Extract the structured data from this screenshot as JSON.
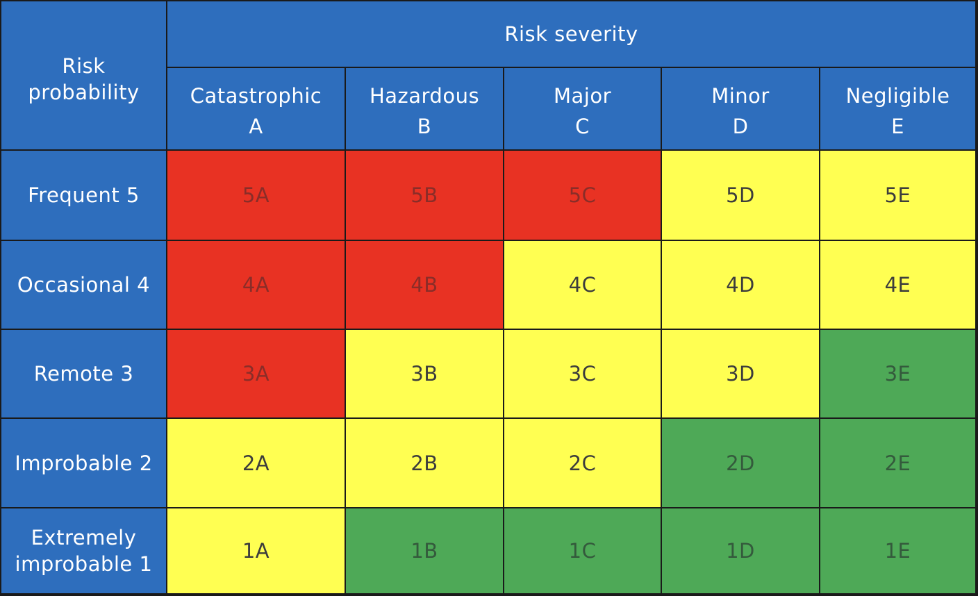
{
  "corner_label": "Risk\nprobability",
  "severity_title": "Risk severity",
  "severity_columns": [
    {
      "name": "Catastrophic",
      "code": "A"
    },
    {
      "name": "Hazardous",
      "code": "B"
    },
    {
      "name": "Major",
      "code": "C"
    },
    {
      "name": "Minor",
      "code": "D"
    },
    {
      "name": "Negligible",
      "code": "E"
    }
  ],
  "probability_rows": [
    {
      "label": "Frequent 5"
    },
    {
      "label": "Occasional 4"
    },
    {
      "label": "Remote 3"
    },
    {
      "label": "Improbable 2"
    },
    {
      "label": "Extremely\nimprobable 1"
    }
  ],
  "cells": [
    [
      {
        "code": "5A",
        "level": "red"
      },
      {
        "code": "5B",
        "level": "red"
      },
      {
        "code": "5C",
        "level": "red"
      },
      {
        "code": "5D",
        "level": "yellow"
      },
      {
        "code": "5E",
        "level": "yellow"
      }
    ],
    [
      {
        "code": "4A",
        "level": "red"
      },
      {
        "code": "4B",
        "level": "red"
      },
      {
        "code": "4C",
        "level": "yellow"
      },
      {
        "code": "4D",
        "level": "yellow"
      },
      {
        "code": "4E",
        "level": "yellow"
      }
    ],
    [
      {
        "code": "3A",
        "level": "red"
      },
      {
        "code": "3B",
        "level": "yellow"
      },
      {
        "code": "3C",
        "level": "yellow"
      },
      {
        "code": "3D",
        "level": "yellow"
      },
      {
        "code": "3E",
        "level": "green"
      }
    ],
    [
      {
        "code": "2A",
        "level": "yellow"
      },
      {
        "code": "2B",
        "level": "yellow"
      },
      {
        "code": "2C",
        "level": "yellow"
      },
      {
        "code": "2D",
        "level": "green"
      },
      {
        "code": "2E",
        "level": "green"
      }
    ],
    [
      {
        "code": "1A",
        "level": "yellow"
      },
      {
        "code": "1B",
        "level": "green"
      },
      {
        "code": "1C",
        "level": "green"
      },
      {
        "code": "1D",
        "level": "green"
      },
      {
        "code": "1E",
        "level": "green"
      }
    ]
  ],
  "colors": {
    "header": "#2e6ebd",
    "red": "#e83223",
    "yellow": "#ffff52",
    "green": "#4ea957",
    "grid": "#1a1a1a"
  }
}
